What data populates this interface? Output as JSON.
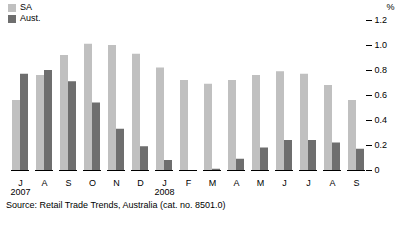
{
  "chart_data": {
    "type": "bar",
    "categories": [
      "J\n2007",
      "A",
      "S",
      "O",
      "N",
      "D",
      "J\n2008",
      "F",
      "M",
      "A",
      "M",
      "J",
      "J",
      "A",
      "S"
    ],
    "series": [
      {
        "name": "SA",
        "color": "#c0c0c0",
        "values": [
          0.56,
          0.76,
          0.92,
          1.01,
          1.0,
          0.93,
          0.82,
          0.72,
          0.69,
          0.72,
          0.76,
          0.79,
          0.77,
          0.68,
          0.56
        ]
      },
      {
        "name": "Aust.",
        "color": "#6e6e6e",
        "values": [
          0.77,
          0.8,
          0.71,
          0.54,
          0.33,
          0.19,
          0.08,
          0.0,
          0.01,
          0.09,
          0.18,
          0.24,
          0.24,
          0.22,
          0.17
        ]
      }
    ],
    "y_label": "%",
    "ylim": [
      0,
      1.2
    ],
    "yticks": [
      0,
      0.2,
      0.4,
      0.6,
      0.8,
      {
        "value": 1,
        "label": "1.0"
      },
      1.2
    ],
    "grid": false,
    "legend": "top-left",
    "caption": "Source: Retail Trade Trends, Australia (cat. no. 8501.0)"
  }
}
